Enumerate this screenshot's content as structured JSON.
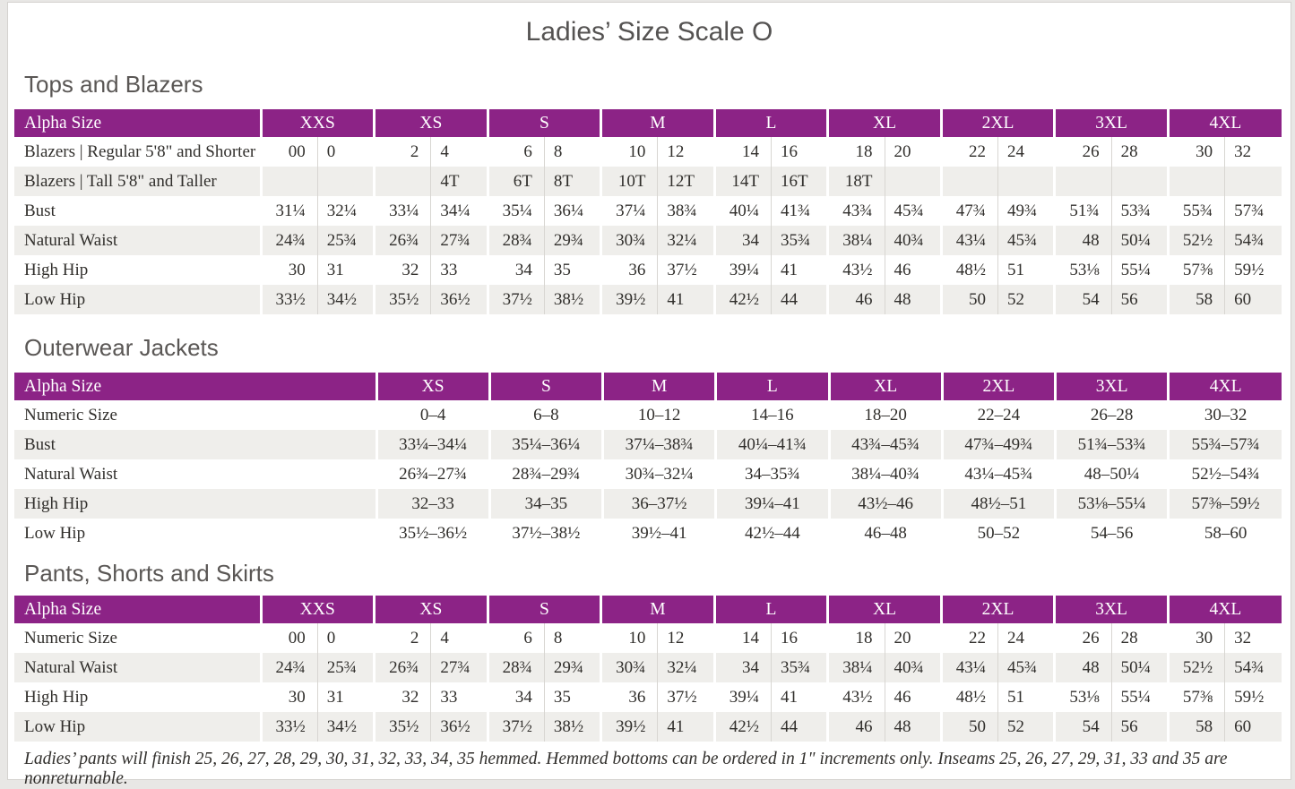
{
  "page": {
    "title": "Ladies’ Size Scale O"
  },
  "colors": {
    "header_bg": "#8C2386",
    "header_text": "#FFFFFF",
    "stripe": "#EFEEEB",
    "divider": "#D8D6D2",
    "text": "#312F2C",
    "heading": "#5A5755"
  },
  "footnote": "Ladies’ pants will finish 25, 26, 27, 28, 29, 30, 31, 32, 33, 34, 35 hemmed. Hemmed bottoms can be ordered in 1\" increments only. Inseams 25, 26, 27, 29, 31, 33 and 35 are nonreturnable.",
  "tables": [
    {
      "section_title": "Tops and Blazers",
      "header_label": "Alpha Size",
      "columns": [
        "XXS",
        "XS",
        "S",
        "M",
        "L",
        "XL",
        "2XL",
        "3XL",
        "4XL"
      ],
      "split_columns": true,
      "rows": [
        {
          "label": "Blazers | Regular 5'8\" and Shorter",
          "cells": [
            [
              "00",
              "0"
            ],
            [
              "2",
              "4"
            ],
            [
              "6",
              "8"
            ],
            [
              "10",
              "12"
            ],
            [
              "14",
              "16"
            ],
            [
              "18",
              "20"
            ],
            [
              "22",
              "24"
            ],
            [
              "26",
              "28"
            ],
            [
              "30",
              "32"
            ]
          ]
        },
        {
          "label": "Blazers | Tall 5'8\" and Taller",
          "cells": [
            [
              "",
              ""
            ],
            [
              "",
              "4T"
            ],
            [
              "6T",
              "8T"
            ],
            [
              "10T",
              "12T"
            ],
            [
              "14T",
              "16T"
            ],
            [
              "18T",
              ""
            ],
            [
              "",
              ""
            ],
            [
              "",
              ""
            ],
            [
              "",
              ""
            ]
          ]
        },
        {
          "label": "Bust",
          "cells": [
            [
              "31¼",
              "32¼"
            ],
            [
              "33¼",
              "34¼"
            ],
            [
              "35¼",
              "36¼"
            ],
            [
              "37¼",
              "38¾"
            ],
            [
              "40¼",
              "41¾"
            ],
            [
              "43¾",
              "45¾"
            ],
            [
              "47¾",
              "49¾"
            ],
            [
              "51¾",
              "53¾"
            ],
            [
              "55¾",
              "57¾"
            ]
          ]
        },
        {
          "label": "Natural Waist",
          "cells": [
            [
              "24¾",
              "25¾"
            ],
            [
              "26¾",
              "27¾"
            ],
            [
              "28¾",
              "29¾"
            ],
            [
              "30¾",
              "32¼"
            ],
            [
              "34",
              "35¾"
            ],
            [
              "38¼",
              "40¾"
            ],
            [
              "43¼",
              "45¾"
            ],
            [
              "48",
              "50¼"
            ],
            [
              "52½",
              "54¾"
            ]
          ]
        },
        {
          "label": "High Hip",
          "cells": [
            [
              "30",
              "31"
            ],
            [
              "32",
              "33"
            ],
            [
              "34",
              "35"
            ],
            [
              "36",
              "37½"
            ],
            [
              "39¼",
              "41"
            ],
            [
              "43½",
              "46"
            ],
            [
              "48½",
              "51"
            ],
            [
              "53⅛",
              "55¼"
            ],
            [
              "57⅜",
              "59½"
            ]
          ]
        },
        {
          "label": "Low Hip",
          "cells": [
            [
              "33½",
              "34½"
            ],
            [
              "35½",
              "36½"
            ],
            [
              "37½",
              "38½"
            ],
            [
              "39½",
              "41"
            ],
            [
              "42½",
              "44"
            ],
            [
              "46",
              "48"
            ],
            [
              "50",
              "52"
            ],
            [
              "54",
              "56"
            ],
            [
              "58",
              "60"
            ]
          ]
        }
      ]
    },
    {
      "section_title": "Outerwear Jackets",
      "header_label": "Alpha Size",
      "columns": [
        "XS",
        "S",
        "M",
        "L",
        "XL",
        "2XL",
        "3XL",
        "4XL"
      ],
      "split_columns": false,
      "rows": [
        {
          "label": "Numeric Size",
          "cells": [
            "0–4",
            "6–8",
            "10–12",
            "14–16",
            "18–20",
            "22–24",
            "26–28",
            "30–32"
          ]
        },
        {
          "label": "Bust",
          "cells": [
            "33¼–34¼",
            "35¼–36¼",
            "37¼–38¾",
            "40¼–41¾",
            "43¾–45¾",
            "47¾–49¾",
            "51¾–53¾",
            "55¾–57¾"
          ]
        },
        {
          "label": "Natural Waist",
          "cells": [
            "26¾–27¾",
            "28¾–29¾",
            "30¾–32¼",
            "34–35¾",
            "38¼–40¾",
            "43¼–45¾",
            "48–50¼",
            "52½–54¾"
          ]
        },
        {
          "label": "High Hip",
          "cells": [
            "32–33",
            "34–35",
            "36–37½",
            "39¼–41",
            "43½–46",
            "48½–51",
            "53⅛–55¼",
            "57⅜–59½"
          ]
        },
        {
          "label": "Low Hip",
          "cells": [
            "35½–36½",
            "37½–38½",
            "39½–41",
            "42½–44",
            "46–48",
            "50–52",
            "54–56",
            "58–60"
          ]
        }
      ]
    },
    {
      "section_title": "Pants, Shorts and Skirts",
      "header_label": "Alpha Size",
      "columns": [
        "XXS",
        "XS",
        "S",
        "M",
        "L",
        "XL",
        "2XL",
        "3XL",
        "4XL"
      ],
      "split_columns": true,
      "rows": [
        {
          "label": "Numeric Size",
          "cells": [
            [
              "00",
              "0"
            ],
            [
              "2",
              "4"
            ],
            [
              "6",
              "8"
            ],
            [
              "10",
              "12"
            ],
            [
              "14",
              "16"
            ],
            [
              "18",
              "20"
            ],
            [
              "22",
              "24"
            ],
            [
              "26",
              "28"
            ],
            [
              "30",
              "32"
            ]
          ]
        },
        {
          "label": "Natural Waist",
          "cells": [
            [
              "24¾",
              "25¾"
            ],
            [
              "26¾",
              "27¾"
            ],
            [
              "28¾",
              "29¾"
            ],
            [
              "30¾",
              "32¼"
            ],
            [
              "34",
              "35¾"
            ],
            [
              "38¼",
              "40¾"
            ],
            [
              "43¼",
              "45¾"
            ],
            [
              "48",
              "50¼"
            ],
            [
              "52½",
              "54¾"
            ]
          ]
        },
        {
          "label": "High Hip",
          "cells": [
            [
              "30",
              "31"
            ],
            [
              "32",
              "33"
            ],
            [
              "34",
              "35"
            ],
            [
              "36",
              "37½"
            ],
            [
              "39¼",
              "41"
            ],
            [
              "43½",
              "46"
            ],
            [
              "48½",
              "51"
            ],
            [
              "53⅛",
              "55¼"
            ],
            [
              "57⅜",
              "59½"
            ]
          ]
        },
        {
          "label": "Low Hip",
          "cells": [
            [
              "33½",
              "34½"
            ],
            [
              "35½",
              "36½"
            ],
            [
              "37½",
              "38½"
            ],
            [
              "39½",
              "41"
            ],
            [
              "42½",
              "44"
            ],
            [
              "46",
              "48"
            ],
            [
              "50",
              "52"
            ],
            [
              "54",
              "56"
            ],
            [
              "58",
              "60"
            ]
          ]
        }
      ]
    }
  ]
}
